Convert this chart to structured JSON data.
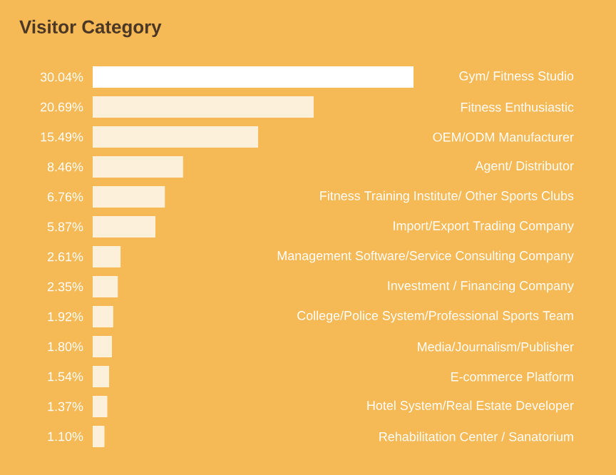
{
  "chart_data": {
    "type": "bar",
    "orientation": "horizontal",
    "title": "Visitor Category",
    "categories": [
      "Gym/ Fitness Studio",
      "Fitness Enthusiastic",
      "OEM/ODM Manufacturer",
      "Agent/ Distributor",
      "Fitness Training Institute/ Other Sports Clubs",
      "Import/Export Trading Company",
      "Management Software/Service Consulting Company",
      "Investment / Financing Company",
      "College/Police System/Professional Sports Team",
      "Media/Journalism/Publisher",
      "E-commerce Platform",
      "Hotel System/Real Estate Developer",
      "Rehabilitation Center / Sanatorium"
    ],
    "values": [
      30.04,
      20.69,
      15.49,
      8.46,
      6.76,
      5.87,
      2.61,
      2.35,
      1.92,
      1.8,
      1.54,
      1.37,
      1.1
    ],
    "value_labels": [
      "30.04%",
      "20.69%",
      "15.49%",
      "8.46%",
      "6.76%",
      "5.87%",
      "2.61%",
      "2.35%",
      "1.92%",
      "1.80%",
      "1.54%",
      "1.37%",
      "1.10%"
    ],
    "colors": [
      "#ffffff",
      "#fdf0da",
      "#fdf0da",
      "#fdf0da",
      "#fdf0da",
      "#fdf0da",
      "#fdf0da",
      "#fdf0da",
      "#fdf0da",
      "#fdf0da",
      "#fdf0da",
      "#fdf0da",
      "#fdf0da"
    ]
  }
}
